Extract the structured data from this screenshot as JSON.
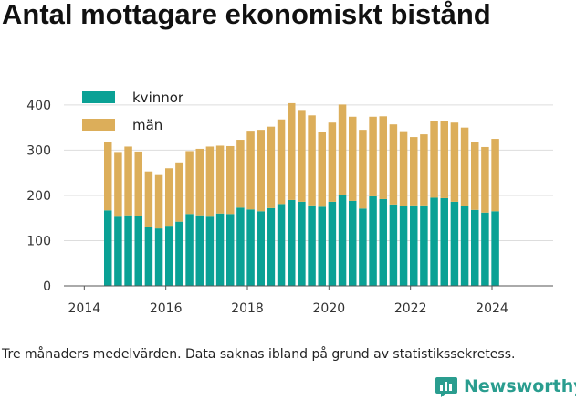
{
  "title": "Antal mottagare ekonomiskt bistånd",
  "caption": "Tre månaders medelvärden. Data saknas ibland på grund av statistikssekretess.",
  "brand": {
    "name": "Newsworthy",
    "icon": "bar-chart-logo-icon"
  },
  "colors": {
    "kvinnor": "#0aa195",
    "man": "#dcae5a",
    "grid": "#dddddd",
    "axis": "#555555"
  },
  "chart_data": {
    "type": "bar",
    "stacked": true,
    "x_start": 2014.58,
    "x_step": 0.25,
    "xlim": [
      2013.5,
      2025.5
    ],
    "ylim": [
      0,
      420
    ],
    "x_ticks": [
      2014,
      2016,
      2018,
      2020,
      2022,
      2024
    ],
    "y_ticks": [
      0,
      100,
      200,
      300,
      400
    ],
    "grid": true,
    "legend_position": "top-left",
    "series": [
      {
        "name": "kvinnor",
        "values": [
          167,
          153,
          156,
          155,
          131,
          127,
          133,
          142,
          159,
          156,
          153,
          160,
          159,
          173,
          169,
          165,
          172,
          181,
          190,
          186,
          178,
          175,
          186,
          200,
          188,
          171,
          198,
          192,
          180,
          177,
          178,
          178,
          195,
          194,
          186,
          177,
          168,
          162,
          165
        ]
      },
      {
        "name": "män",
        "values": [
          151,
          143,
          152,
          142,
          122,
          118,
          127,
          131,
          139,
          147,
          155,
          150,
          150,
          150,
          174,
          180,
          180,
          187,
          214,
          203,
          199,
          166,
          175,
          201,
          186,
          174,
          176,
          183,
          177,
          165,
          151,
          157,
          169,
          170,
          175,
          173,
          151,
          145,
          160
        ]
      }
    ]
  }
}
